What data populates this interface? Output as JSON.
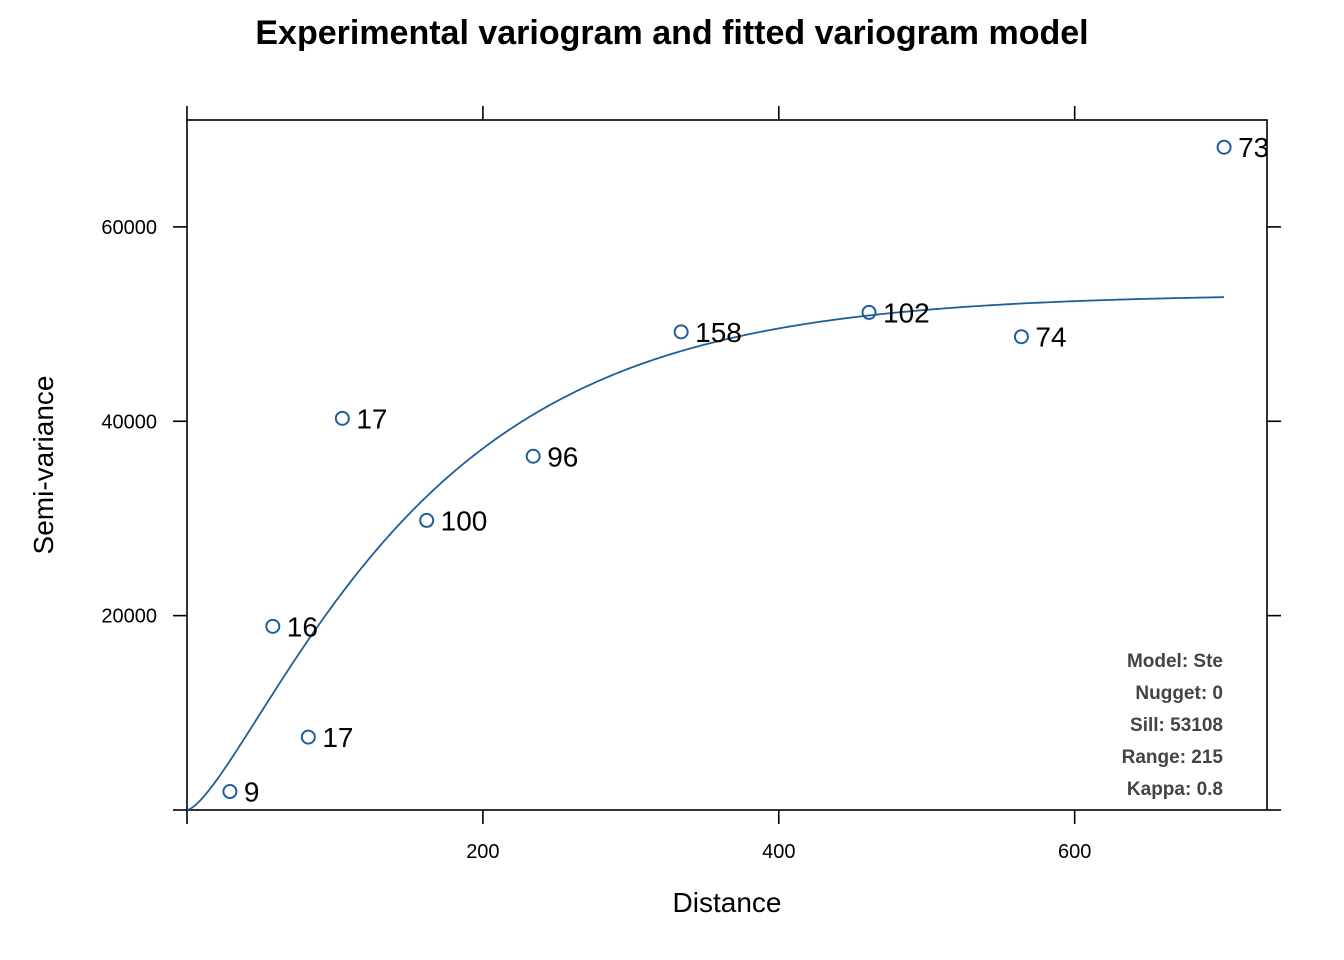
{
  "chart_data": {
    "type": "scatter",
    "title": "Experimental variogram and fitted variogram model",
    "xlabel": "Distance",
    "ylabel": "Semi-variance",
    "xlim": [
      0,
      730
    ],
    "ylim": [
      0,
      71000
    ],
    "x_ticks": [
      200,
      400,
      600
    ],
    "x_tick_labels": [
      "200",
      "400",
      "600"
    ],
    "y_ticks": [
      20000,
      40000,
      60000
    ],
    "y_tick_labels": [
      "20000",
      "40000",
      "60000"
    ],
    "grid": false,
    "series": [
      {
        "type": "scatter",
        "color": "#1f5f99",
        "points": [
          {
            "x": 29,
            "y": 1900,
            "label": "9"
          },
          {
            "x": 58,
            "y": 18900,
            "label": "16"
          },
          {
            "x": 82,
            "y": 7500,
            "label": "17"
          },
          {
            "x": 105,
            "y": 40300,
            "label": "17"
          },
          {
            "x": 162,
            "y": 29800,
            "label": "100"
          },
          {
            "x": 234,
            "y": 36400,
            "label": "96"
          },
          {
            "x": 334,
            "y": 49200,
            "label": "158"
          },
          {
            "x": 461,
            "y": 51200,
            "label": "102"
          },
          {
            "x": 564,
            "y": 48700,
            "label": "74"
          },
          {
            "x": 701,
            "y": 68200,
            "label": "73"
          }
        ]
      },
      {
        "type": "line",
        "color": "#1f5f99",
        "model": "Ste",
        "nugget": 0,
        "sill": 53108,
        "range": 215,
        "kappa": 0.8,
        "x_max": 701
      }
    ],
    "legend": {
      "placement": "bottom-right",
      "lines": [
        "Model: Ste",
        "Nugget: 0",
        "Sill: 53108",
        "Range: 215",
        "Kappa: 0.8"
      ]
    }
  }
}
